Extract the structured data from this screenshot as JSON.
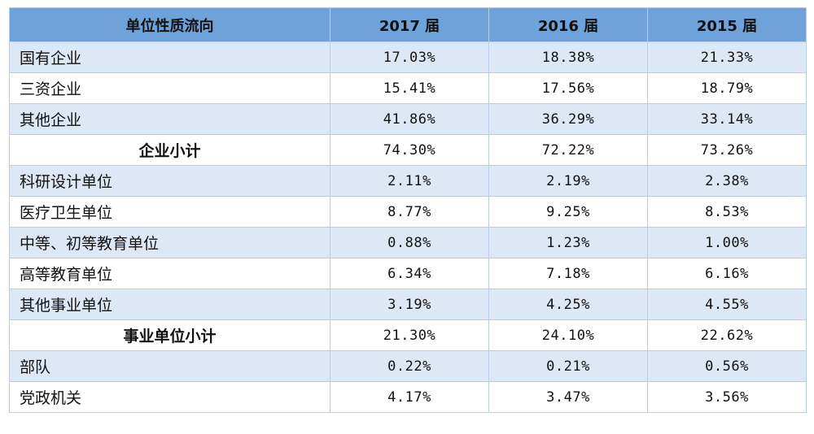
{
  "table": {
    "headers": [
      "单位性质流向",
      "2017 届",
      "2016 届",
      "2015 届"
    ],
    "rows": [
      {
        "name": "国有企业",
        "values": [
          "17.03%",
          "18.38%",
          "21.33%"
        ],
        "subtotal": false
      },
      {
        "name": "三资企业",
        "values": [
          "15.41%",
          "17.56%",
          "18.79%"
        ],
        "subtotal": false
      },
      {
        "name": "其他企业",
        "values": [
          "41.86%",
          "36.29%",
          "33.14%"
        ],
        "subtotal": false
      },
      {
        "name": "企业小计",
        "values": [
          "74.30%",
          "72.22%",
          "73.26%"
        ],
        "subtotal": true
      },
      {
        "name": "科研设计单位",
        "values": [
          "2.11%",
          "2.19%",
          "2.38%"
        ],
        "subtotal": false
      },
      {
        "name": "医疗卫生单位",
        "values": [
          "8.77%",
          "9.25%",
          "8.53%"
        ],
        "subtotal": false
      },
      {
        "name": "中等、初等教育单位",
        "values": [
          "0.88%",
          "1.23%",
          "1.00%"
        ],
        "subtotal": false
      },
      {
        "name": "高等教育单位",
        "values": [
          "6.34%",
          "7.18%",
          "6.16%"
        ],
        "subtotal": false
      },
      {
        "name": "其他事业单位",
        "values": [
          "3.19%",
          "4.25%",
          "4.55%"
        ],
        "subtotal": false
      },
      {
        "name": "事业单位小计",
        "values": [
          "21.30%",
          "24.10%",
          "22.62%"
        ],
        "subtotal": true
      },
      {
        "name": "部队",
        "values": [
          "0.22%",
          "0.21%",
          "0.56%"
        ],
        "subtotal": false
      },
      {
        "name": "党政机关",
        "values": [
          "4.17%",
          "3.47%",
          "3.56%"
        ],
        "subtotal": false
      }
    ]
  },
  "colors": {
    "header_bg": "#6fa2d9",
    "alt_row_bg": "#dce8f6",
    "plain_row_bg": "#ffffff",
    "border": "#b9cde6"
  }
}
